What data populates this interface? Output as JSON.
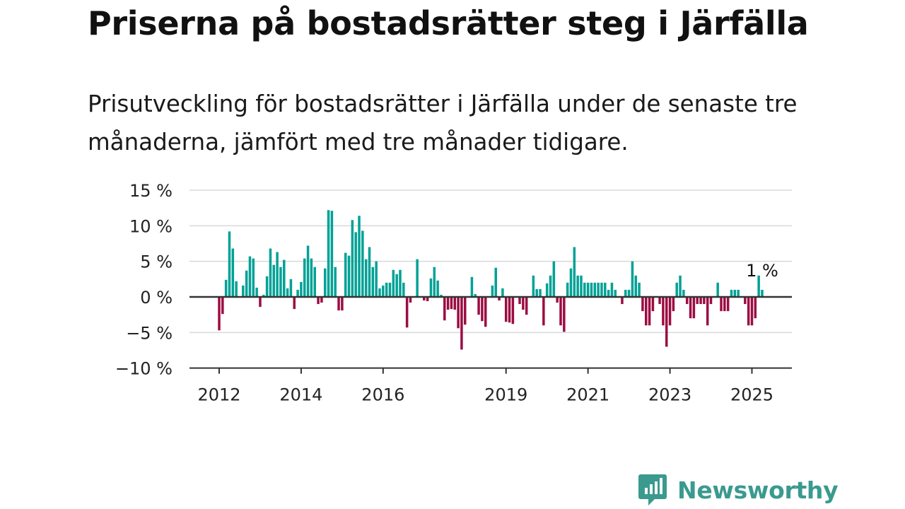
{
  "title": "Priserna på bostadsrätter steg i Järfälla",
  "subtitle": "Prisutveckling för bostadsrätter i Järfälla under de senaste tre månaderna, jämfört med tre månader tidigare.",
  "brand": {
    "name": "Newsworthy",
    "icon": "newsworthy-logo-icon",
    "color": "#3a9a8f"
  },
  "colors": {
    "positive": "#00a196",
    "negative": "#9b0d42",
    "grid": "#d9d9d9",
    "axis": "#333333"
  },
  "chart_data": {
    "type": "bar",
    "title": "",
    "xlabel": "",
    "ylabel": "",
    "ylim": [
      -10,
      15
    ],
    "y_ticks": [
      15,
      10,
      5,
      0,
      -5,
      -10
    ],
    "y_tick_labels": [
      "15 %",
      "10 %",
      "5 %",
      "0 %",
      "−5 %",
      "−10 %"
    ],
    "x_tick_labels": [
      "2012",
      "2014",
      "2016",
      "2019",
      "2021",
      "2023",
      "2025"
    ],
    "x_tick_dates": [
      "2012-01",
      "2014-01",
      "2016-01",
      "2019-01",
      "2021-01",
      "2023-01",
      "2025-01"
    ],
    "grid": true,
    "last_value_label": "1 %",
    "unit": "%",
    "series": [
      {
        "values": [
          {
            "x": "2012-01",
            "y": -4.7
          },
          {
            "x": "2012-02",
            "y": -2.4
          },
          {
            "x": "2012-03",
            "y": 2.4
          },
          {
            "x": "2012-04",
            "y": 9.2
          },
          {
            "x": "2012-05",
            "y": 6.8
          },
          {
            "x": "2012-06",
            "y": 2.2
          },
          {
            "x": "2012-07",
            "y": 0.0
          },
          {
            "x": "2012-08",
            "y": 1.6
          },
          {
            "x": "2012-09",
            "y": 3.7
          },
          {
            "x": "2012-10",
            "y": 5.7
          },
          {
            "x": "2012-11",
            "y": 5.4
          },
          {
            "x": "2012-12",
            "y": 1.3
          },
          {
            "x": "2013-01",
            "y": -1.4
          },
          {
            "x": "2013-02",
            "y": 0.3
          },
          {
            "x": "2013-03",
            "y": 2.9
          },
          {
            "x": "2013-04",
            "y": 6.8
          },
          {
            "x": "2013-05",
            "y": 4.5
          },
          {
            "x": "2013-06",
            "y": 6.3
          },
          {
            "x": "2013-07",
            "y": 4.2
          },
          {
            "x": "2013-08",
            "y": 5.2
          },
          {
            "x": "2013-09",
            "y": 1.2
          },
          {
            "x": "2013-10",
            "y": 2.5
          },
          {
            "x": "2013-11",
            "y": -1.7
          },
          {
            "x": "2013-12",
            "y": 1.0
          },
          {
            "x": "2014-01",
            "y": 2.1
          },
          {
            "x": "2014-02",
            "y": 5.4
          },
          {
            "x": "2014-03",
            "y": 7.2
          },
          {
            "x": "2014-04",
            "y": 5.4
          },
          {
            "x": "2014-05",
            "y": 4.2
          },
          {
            "x": "2014-06",
            "y": -1.0
          },
          {
            "x": "2014-07",
            "y": -0.8
          },
          {
            "x": "2014-08",
            "y": 4.0
          },
          {
            "x": "2014-09",
            "y": 12.2
          },
          {
            "x": "2014-10",
            "y": 12.1
          },
          {
            "x": "2014-11",
            "y": 4.2
          },
          {
            "x": "2014-12",
            "y": -1.9
          },
          {
            "x": "2015-01",
            "y": -1.9
          },
          {
            "x": "2015-02",
            "y": 6.2
          },
          {
            "x": "2015-03",
            "y": 5.8
          },
          {
            "x": "2015-04",
            "y": 10.8
          },
          {
            "x": "2015-05",
            "y": 9.1
          },
          {
            "x": "2015-06",
            "y": 11.4
          },
          {
            "x": "2015-07",
            "y": 9.3
          },
          {
            "x": "2015-08",
            "y": 5.3
          },
          {
            "x": "2015-09",
            "y": 7.0
          },
          {
            "x": "2015-10",
            "y": 4.2
          },
          {
            "x": "2015-11",
            "y": 5.0
          },
          {
            "x": "2015-12",
            "y": 1.2
          },
          {
            "x": "2016-01",
            "y": 1.6
          },
          {
            "x": "2016-02",
            "y": 2.0
          },
          {
            "x": "2016-03",
            "y": 2.0
          },
          {
            "x": "2016-04",
            "y": 3.8
          },
          {
            "x": "2016-05",
            "y": 3.2
          },
          {
            "x": "2016-06",
            "y": 3.8
          },
          {
            "x": "2016-07",
            "y": 2.0
          },
          {
            "x": "2016-08",
            "y": -4.3
          },
          {
            "x": "2016-09",
            "y": -0.8
          },
          {
            "x": "2016-10",
            "y": 0.0
          },
          {
            "x": "2016-11",
            "y": 5.3
          },
          {
            "x": "2016-12",
            "y": 0.0
          },
          {
            "x": "2017-01",
            "y": -0.5
          },
          {
            "x": "2017-02",
            "y": -0.6
          },
          {
            "x": "2017-03",
            "y": 2.6
          },
          {
            "x": "2017-04",
            "y": 4.2
          },
          {
            "x": "2017-05",
            "y": 2.3
          },
          {
            "x": "2017-06",
            "y": 0.3
          },
          {
            "x": "2017-07",
            "y": -3.3
          },
          {
            "x": "2017-08",
            "y": -1.8
          },
          {
            "x": "2017-09",
            "y": -1.7
          },
          {
            "x": "2017-10",
            "y": -1.8
          },
          {
            "x": "2017-11",
            "y": -4.4
          },
          {
            "x": "2017-12",
            "y": -7.4
          },
          {
            "x": "2018-01",
            "y": -3.9
          },
          {
            "x": "2018-02",
            "y": 0.0
          },
          {
            "x": "2018-03",
            "y": 2.8
          },
          {
            "x": "2018-04",
            "y": 0.4
          },
          {
            "x": "2018-05",
            "y": -2.5
          },
          {
            "x": "2018-06",
            "y": -3.4
          },
          {
            "x": "2018-07",
            "y": -4.2
          },
          {
            "x": "2018-08",
            "y": 0.0
          },
          {
            "x": "2018-09",
            "y": 1.6
          },
          {
            "x": "2018-10",
            "y": 4.1
          },
          {
            "x": "2018-11",
            "y": -0.5
          },
          {
            "x": "2018-12",
            "y": 1.2
          },
          {
            "x": "2019-01",
            "y": -3.5
          },
          {
            "x": "2019-02",
            "y": -3.6
          },
          {
            "x": "2019-03",
            "y": -3.8
          },
          {
            "x": "2019-04",
            "y": 0.0
          },
          {
            "x": "2019-05",
            "y": -1.0
          },
          {
            "x": "2019-06",
            "y": -1.8
          },
          {
            "x": "2019-07",
            "y": -2.5
          },
          {
            "x": "2019-08",
            "y": 0.0
          },
          {
            "x": "2019-09",
            "y": 3.0
          },
          {
            "x": "2019-10",
            "y": 1.1
          },
          {
            "x": "2019-11",
            "y": 1.1
          },
          {
            "x": "2019-12",
            "y": -4.0
          },
          {
            "x": "2020-01",
            "y": 1.9
          },
          {
            "x": "2020-02",
            "y": 3.0
          },
          {
            "x": "2020-03",
            "y": 5.0
          },
          {
            "x": "2020-04",
            "y": -0.8
          },
          {
            "x": "2020-05",
            "y": -4.0
          },
          {
            "x": "2020-06",
            "y": -4.9
          },
          {
            "x": "2020-07",
            "y": 2.0
          },
          {
            "x": "2020-08",
            "y": 4.0
          },
          {
            "x": "2020-09",
            "y": 7.0
          },
          {
            "x": "2020-10",
            "y": 3.0
          },
          {
            "x": "2020-11",
            "y": 3.0
          },
          {
            "x": "2020-12",
            "y": 2.0
          },
          {
            "x": "2021-01",
            "y": 2.0
          },
          {
            "x": "2021-02",
            "y": 2.0
          },
          {
            "x": "2021-03",
            "y": 2.0
          },
          {
            "x": "2021-04",
            "y": 2.0
          },
          {
            "x": "2021-05",
            "y": 2.0
          },
          {
            "x": "2021-06",
            "y": 2.0
          },
          {
            "x": "2021-07",
            "y": 1.0
          },
          {
            "x": "2021-08",
            "y": 2.0
          },
          {
            "x": "2021-09",
            "y": 1.0
          },
          {
            "x": "2021-10",
            "y": 0.0
          },
          {
            "x": "2021-11",
            "y": -1.0
          },
          {
            "x": "2021-12",
            "y": 1.0
          },
          {
            "x": "2022-01",
            "y": 1.0
          },
          {
            "x": "2022-02",
            "y": 5.0
          },
          {
            "x": "2022-03",
            "y": 3.0
          },
          {
            "x": "2022-04",
            "y": 2.0
          },
          {
            "x": "2022-05",
            "y": -2.0
          },
          {
            "x": "2022-06",
            "y": -4.0
          },
          {
            "x": "2022-07",
            "y": -4.0
          },
          {
            "x": "2022-08",
            "y": -2.0
          },
          {
            "x": "2022-09",
            "y": 0.0
          },
          {
            "x": "2022-10",
            "y": -1.0
          },
          {
            "x": "2022-11",
            "y": -4.0
          },
          {
            "x": "2022-12",
            "y": -7.0
          },
          {
            "x": "2023-01",
            "y": -4.0
          },
          {
            "x": "2023-02",
            "y": -2.0
          },
          {
            "x": "2023-03",
            "y": 2.0
          },
          {
            "x": "2023-04",
            "y": 3.0
          },
          {
            "x": "2023-05",
            "y": 1.0
          },
          {
            "x": "2023-06",
            "y": -1.0
          },
          {
            "x": "2023-07",
            "y": -3.0
          },
          {
            "x": "2023-08",
            "y": -3.0
          },
          {
            "x": "2023-09",
            "y": -1.0
          },
          {
            "x": "2023-10",
            "y": -1.0
          },
          {
            "x": "2023-11",
            "y": -1.0
          },
          {
            "x": "2023-12",
            "y": -4.0
          },
          {
            "x": "2024-01",
            "y": -1.0
          },
          {
            "x": "2024-02",
            "y": 0.0
          },
          {
            "x": "2024-03",
            "y": 2.0
          },
          {
            "x": "2024-04",
            "y": -2.0
          },
          {
            "x": "2024-05",
            "y": -2.0
          },
          {
            "x": "2024-06",
            "y": -2.0
          },
          {
            "x": "2024-07",
            "y": 1.0
          },
          {
            "x": "2024-08",
            "y": 1.0
          },
          {
            "x": "2024-09",
            "y": 1.0
          },
          {
            "x": "2024-10",
            "y": 0.0
          },
          {
            "x": "2024-11",
            "y": -1.0
          },
          {
            "x": "2024-12",
            "y": -4.0
          },
          {
            "x": "2025-01",
            "y": -4.0
          },
          {
            "x": "2025-02",
            "y": -3.0
          },
          {
            "x": "2025-03",
            "y": 3.0
          },
          {
            "x": "2025-04",
            "y": 1.0
          }
        ]
      }
    ]
  }
}
